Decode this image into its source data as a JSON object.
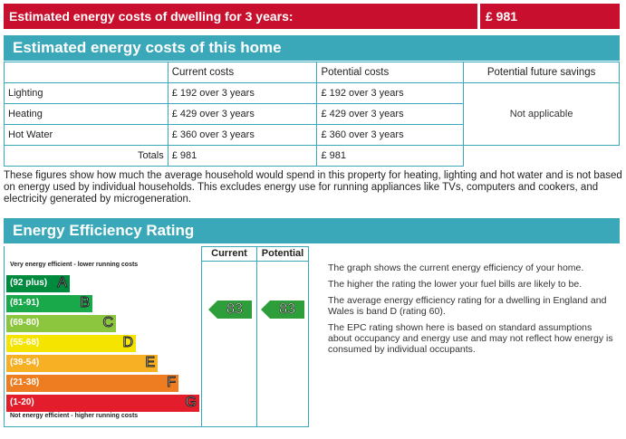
{
  "summary": {
    "label": "Estimated energy costs of dwelling for 3 years:",
    "value": "£ 981"
  },
  "costs": {
    "title": "Estimated energy costs of this home",
    "headers": [
      "",
      "Current costs",
      "Potential costs",
      "Potential future savings"
    ],
    "rows": [
      {
        "item": "Lighting",
        "current": "£ 192 over 3 years",
        "potential": "£ 192 over 3 years"
      },
      {
        "item": "Heating",
        "current": "£ 429 over 3 years",
        "potential": "£ 429 over 3 years"
      },
      {
        "item": "Hot Water",
        "current": "£ 360 over 3 years",
        "potential": "£ 360 over 3 years"
      }
    ],
    "savings": "Not applicable",
    "totals_label": "Totals",
    "totals_current": "£ 981",
    "totals_potential": "£ 981"
  },
  "notes": "These figures show how much the average household would spend in this property for heating, lighting and hot water and is not based on energy used by individual households. This excludes energy use for running appliances like TVs, computers and cookers, and electricity generated by microgeneration.",
  "eer": {
    "title": "Energy Efficiency Rating",
    "col_current": "Current",
    "col_potential": "Potential",
    "top_label": "Very energy efficient - lower running costs",
    "bottom_label": "Not energy efficient - higher running costs",
    "bands": [
      {
        "range": "(92 plus)",
        "letter": "A",
        "color": "#008a3e"
      },
      {
        "range": "(81-91)",
        "letter": "B",
        "color": "#19a84a"
      },
      {
        "range": "(69-80)",
        "letter": "C",
        "color": "#8cc63f"
      },
      {
        "range": "(55-68)",
        "letter": "D",
        "color": "#f5e400"
      },
      {
        "range": "(39-54)",
        "letter": "E",
        "color": "#f7b024"
      },
      {
        "range": "(21-38)",
        "letter": "F",
        "color": "#ee7d22"
      },
      {
        "range": "(1-20)",
        "letter": "G",
        "color": "#e31d2b"
      }
    ],
    "current_rating": "83",
    "potential_rating": "83",
    "explanation": [
      "The graph shows the current energy efficiency of your home.",
      "The higher the rating the lower your fuel bills are likely to be.",
      "The average energy efficiency rating for a dwelling in England and Wales is band D (rating 60).",
      "The EPC rating shown here is based on standard assumptions about occupancy and energy use and may not reflect how energy is consumed by individual occupants."
    ]
  }
}
